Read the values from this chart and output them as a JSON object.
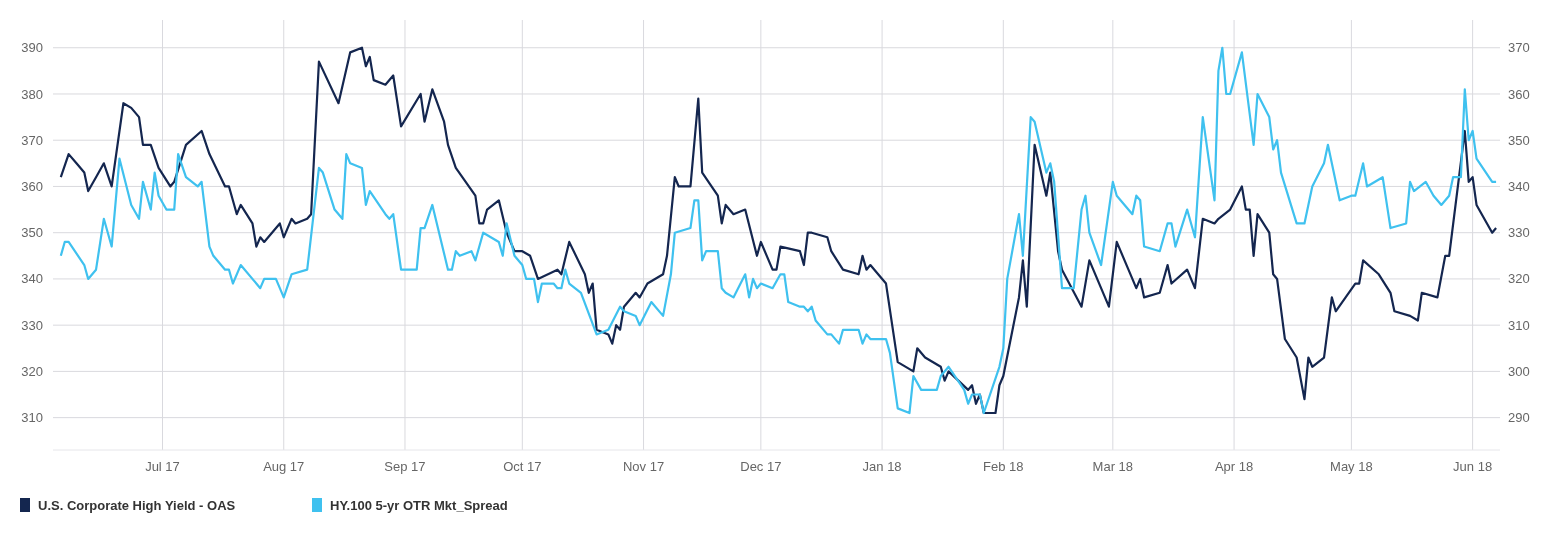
{
  "chart_data": {
    "type": "line",
    "xlim": [
      "2017-06-03",
      "2018-06-08"
    ],
    "xticks": [
      {
        "value": "2017-07-01",
        "label": "Jul 17"
      },
      {
        "value": "2017-08-01",
        "label": "Aug 17"
      },
      {
        "value": "2017-09-01",
        "label": "Sep 17"
      },
      {
        "value": "2017-10-01",
        "label": "Oct 17"
      },
      {
        "value": "2017-11-01",
        "label": "Nov 17"
      },
      {
        "value": "2017-12-01",
        "label": "Dec 17"
      },
      {
        "value": "2018-01-01",
        "label": "Jan 18"
      },
      {
        "value": "2018-02-01",
        "label": "Feb 18"
      },
      {
        "value": "2018-03-01",
        "label": "Mar 18"
      },
      {
        "value": "2018-04-01",
        "label": "Apr 18"
      },
      {
        "value": "2018-05-01",
        "label": "May 18"
      },
      {
        "value": "2018-06-01",
        "label": "Jun 18"
      }
    ],
    "ylim": [
      303,
      396
    ],
    "yticks": [
      310,
      320,
      330,
      340,
      350,
      360,
      370,
      380,
      390
    ],
    "y2lim": [
      283,
      376
    ],
    "y2ticks": [
      290,
      300,
      310,
      320,
      330,
      340,
      350,
      360,
      370
    ],
    "grid": true,
    "legend": "bottom left",
    "series": [
      {
        "name": "U.S. Corporate High Yield - OAS",
        "color": "#14264f",
        "axis": "y",
        "x": [
          "2017-06-05",
          "2017-06-07",
          "2017-06-09",
          "2017-06-11",
          "2017-06-12",
          "2017-06-14",
          "2017-06-16",
          "2017-06-18",
          "2017-06-21",
          "2017-06-23",
          "2017-06-25",
          "2017-06-26",
          "2017-06-28",
          "2017-06-30",
          "2017-07-03",
          "2017-07-04",
          "2017-07-07",
          "2017-07-11",
          "2017-07-13",
          "2017-07-17",
          "2017-07-18",
          "2017-07-20",
          "2017-07-21",
          "2017-07-24",
          "2017-07-25",
          "2017-07-26",
          "2017-07-27",
          "2017-07-31",
          "2017-08-01",
          "2017-08-03",
          "2017-08-04",
          "2017-08-07",
          "2017-08-08",
          "2017-08-10",
          "2017-08-15",
          "2017-08-18",
          "2017-08-21",
          "2017-08-22",
          "2017-08-23",
          "2017-08-24",
          "2017-08-27",
          "2017-08-29",
          "2017-08-31",
          "2017-09-05",
          "2017-09-06",
          "2017-09-08",
          "2017-09-11",
          "2017-09-12",
          "2017-09-14",
          "2017-09-19",
          "2017-09-20",
          "2017-09-21",
          "2017-09-22",
          "2017-09-25",
          "2017-09-27",
          "2017-09-29",
          "2017-10-01",
          "2017-10-03",
          "2017-10-05",
          "2017-10-10",
          "2017-10-11",
          "2017-10-13",
          "2017-10-17",
          "2017-10-18",
          "2017-10-19",
          "2017-10-20",
          "2017-10-23",
          "2017-10-24",
          "2017-10-25",
          "2017-10-26",
          "2017-10-27",
          "2017-10-30",
          "2017-10-31",
          "2017-11-02",
          "2017-11-06",
          "2017-11-07",
          "2017-11-09",
          "2017-11-10",
          "2017-11-13",
          "2017-11-15",
          "2017-11-16",
          "2017-11-20",
          "2017-11-21",
          "2017-11-22",
          "2017-11-24",
          "2017-11-27",
          "2017-11-30",
          "2017-12-01",
          "2017-12-04",
          "2017-12-05",
          "2017-12-06",
          "2017-12-11",
          "2017-12-12",
          "2017-12-13",
          "2017-12-14",
          "2017-12-18",
          "2017-12-19",
          "2017-12-22",
          "2017-12-26",
          "2017-12-27",
          "2017-12-28",
          "2017-12-29",
          "2018-01-02",
          "2018-01-05",
          "2018-01-09",
          "2018-01-10",
          "2018-01-12",
          "2018-01-16",
          "2018-01-17",
          "2018-01-18",
          "2018-01-23",
          "2018-01-24",
          "2018-01-25",
          "2018-01-26",
          "2018-01-27",
          "2018-01-30",
          "2018-01-31",
          "2018-02-01",
          "2018-02-05",
          "2018-02-06",
          "2018-02-07",
          "2018-02-09",
          "2018-02-12",
          "2018-02-13",
          "2018-02-15",
          "2018-02-16",
          "2018-02-21",
          "2018-02-23",
          "2018-02-26",
          "2018-02-28",
          "2018-03-02",
          "2018-03-05",
          "2018-03-07",
          "2018-03-08",
          "2018-03-09",
          "2018-03-13",
          "2018-03-15",
          "2018-03-16",
          "2018-03-20",
          "2018-03-22",
          "2018-03-24",
          "2018-03-27",
          "2018-03-28",
          "2018-03-31",
          "2018-04-03",
          "2018-04-04",
          "2018-04-05",
          "2018-04-06",
          "2018-04-07",
          "2018-04-10",
          "2018-04-11",
          "2018-04-12",
          "2018-04-14",
          "2018-04-17",
          "2018-04-19",
          "2018-04-20",
          "2018-04-21",
          "2018-04-24",
          "2018-04-26",
          "2018-04-27",
          "2018-05-02",
          "2018-05-03",
          "2018-05-04",
          "2018-05-08",
          "2018-05-11",
          "2018-05-12",
          "2018-05-16",
          "2018-05-18",
          "2018-05-19",
          "2018-05-23",
          "2018-05-25",
          "2018-05-26",
          "2018-05-30",
          "2018-05-31",
          "2018-06-01",
          "2018-06-02",
          "2018-06-06",
          "2018-06-07"
        ],
        "values": [
          362,
          367,
          365,
          363,
          359,
          362,
          365,
          360,
          378,
          377,
          375,
          369,
          369,
          364,
          360,
          361,
          369,
          372,
          367,
          360,
          360,
          354,
          356,
          352,
          347,
          349,
          348,
          352,
          349,
          353,
          352,
          353,
          354,
          387,
          378,
          389,
          390,
          386,
          388,
          383,
          382,
          384,
          373,
          380,
          374,
          381,
          374,
          369,
          364,
          358,
          352,
          352,
          355,
          357,
          350,
          346,
          346,
          345,
          340,
          342,
          341,
          348,
          341,
          337,
          339,
          329,
          328,
          326,
          330,
          329,
          334,
          337,
          336,
          339,
          341,
          345,
          362,
          360,
          360,
          379,
          363,
          358,
          352,
          356,
          354,
          355,
          345,
          348,
          342,
          342,
          347,
          346,
          343,
          350,
          350,
          349,
          346,
          342,
          341,
          345,
          342,
          343,
          339,
          322,
          320,
          325,
          323,
          321,
          318,
          320,
          316,
          317,
          313,
          315,
          311,
          311,
          317,
          319,
          336,
          344,
          334,
          369,
          358,
          363,
          346,
          342,
          334,
          344,
          338,
          334,
          348,
          342,
          338,
          340,
          336,
          337,
          343,
          339,
          342,
          338,
          353,
          352,
          353,
          355,
          360,
          355,
          355,
          345,
          354,
          350,
          341,
          340,
          327,
          323,
          314,
          323,
          321,
          323,
          336,
          333,
          339,
          339,
          344,
          341,
          337,
          333,
          332,
          331,
          337,
          336,
          345,
          345,
          372,
          361,
          362,
          356,
          350,
          351
        ]
      },
      {
        "name": "HY.100 5-yr OTR Mkt_Spread",
        "color": "#3fc1ef",
        "axis": "y2",
        "x": [
          "2017-06-05",
          "2017-06-06",
          "2017-06-07",
          "2017-06-11",
          "2017-06-12",
          "2017-06-14",
          "2017-06-16",
          "2017-06-18",
          "2017-06-20",
          "2017-06-23",
          "2017-06-25",
          "2017-06-26",
          "2017-06-28",
          "2017-06-29",
          "2017-06-30",
          "2017-07-02",
          "2017-07-04",
          "2017-07-05",
          "2017-07-07",
          "2017-07-10",
          "2017-07-11",
          "2017-07-13",
          "2017-07-14",
          "2017-07-17",
          "2017-07-18",
          "2017-07-19",
          "2017-07-21",
          "2017-07-26",
          "2017-07-27",
          "2017-07-30",
          "2017-08-01",
          "2017-08-03",
          "2017-08-07",
          "2017-08-10",
          "2017-08-11",
          "2017-08-14",
          "2017-08-16",
          "2017-08-17",
          "2017-08-18",
          "2017-08-21",
          "2017-08-22",
          "2017-08-23",
          "2017-08-27",
          "2017-08-28",
          "2017-08-29",
          "2017-08-31",
          "2017-09-04",
          "2017-09-05",
          "2017-09-06",
          "2017-09-08",
          "2017-09-12",
          "2017-09-13",
          "2017-09-14",
          "2017-09-15",
          "2017-09-18",
          "2017-09-19",
          "2017-09-21",
          "2017-09-25",
          "2017-09-26",
          "2017-09-27",
          "2017-09-29",
          "2017-10-01",
          "2017-10-02",
          "2017-10-03",
          "2017-10-04",
          "2017-10-05",
          "2017-10-06",
          "2017-10-09",
          "2017-10-10",
          "2017-10-11",
          "2017-10-12",
          "2017-10-13",
          "2017-10-16",
          "2017-10-20",
          "2017-10-23",
          "2017-10-26",
          "2017-10-27",
          "2017-10-30",
          "2017-10-31",
          "2017-11-03",
          "2017-11-06",
          "2017-11-08",
          "2017-11-09",
          "2017-11-13",
          "2017-11-14",
          "2017-11-15",
          "2017-11-16",
          "2017-11-17",
          "2017-11-20",
          "2017-11-21",
          "2017-11-22",
          "2017-11-24",
          "2017-11-27",
          "2017-11-28",
          "2017-11-29",
          "2017-11-30",
          "2017-12-01",
          "2017-12-04",
          "2017-12-06",
          "2017-12-07",
          "2017-12-08",
          "2017-12-11",
          "2017-12-12",
          "2017-12-13",
          "2017-12-14",
          "2017-12-15",
          "2017-12-18",
          "2017-12-19",
          "2017-12-21",
          "2017-12-22",
          "2017-12-26",
          "2017-12-27",
          "2017-12-28",
          "2017-12-29",
          "2018-01-02",
          "2018-01-03",
          "2018-01-05",
          "2018-01-08",
          "2018-01-09",
          "2018-01-11",
          "2018-01-15",
          "2018-01-16",
          "2018-01-18",
          "2018-01-22",
          "2018-01-23",
          "2018-01-24",
          "2018-01-26",
          "2018-01-27",
          "2018-01-31",
          "2018-02-01",
          "2018-02-02",
          "2018-02-05",
          "2018-02-06",
          "2018-02-08",
          "2018-02-09",
          "2018-02-12",
          "2018-02-13",
          "2018-02-14",
          "2018-02-16",
          "2018-02-19",
          "2018-02-21",
          "2018-02-22",
          "2018-02-23",
          "2018-02-26",
          "2018-03-01",
          "2018-03-02",
          "2018-03-06",
          "2018-03-07",
          "2018-03-08",
          "2018-03-09",
          "2018-03-13",
          "2018-03-15",
          "2018-03-16",
          "2018-03-17",
          "2018-03-20",
          "2018-03-22",
          "2018-03-24",
          "2018-03-27",
          "2018-03-28",
          "2018-03-29",
          "2018-03-30",
          "2018-03-31",
          "2018-04-03",
          "2018-04-06",
          "2018-04-07",
          "2018-04-10",
          "2018-04-11",
          "2018-04-12",
          "2018-04-13",
          "2018-04-17",
          "2018-04-19",
          "2018-04-21",
          "2018-04-24",
          "2018-04-25",
          "2018-04-28",
          "2018-05-01",
          "2018-05-02",
          "2018-05-04",
          "2018-05-05",
          "2018-05-09",
          "2018-05-11",
          "2018-05-15",
          "2018-05-16",
          "2018-05-17",
          "2018-05-20",
          "2018-05-22",
          "2018-05-24",
          "2018-05-26",
          "2018-05-27",
          "2018-05-29",
          "2018-05-30",
          "2018-05-31",
          "2018-06-01",
          "2018-06-02",
          "2018-06-06",
          "2018-06-07"
        ],
        "values": [
          325,
          328,
          328,
          323,
          320,
          322,
          333,
          327,
          346,
          336,
          333,
          341,
          335,
          343,
          338,
          335,
          335,
          347,
          342,
          340,
          341,
          327,
          325,
          322,
          322,
          319,
          323,
          318,
          320,
          320,
          316,
          321,
          322,
          344,
          343,
          335,
          333,
          347,
          345,
          344,
          336,
          339,
          334,
          333,
          334,
          322,
          322,
          331,
          331,
          336,
          322,
          322,
          326,
          325,
          326,
          324,
          330,
          328,
          325,
          332,
          325,
          323,
          320,
          320,
          320,
          315,
          319,
          319,
          318,
          318,
          322,
          319,
          317,
          308,
          309,
          314,
          313,
          312,
          310,
          315,
          312,
          321,
          330,
          331,
          337,
          337,
          324,
          326,
          326,
          318,
          317,
          316,
          321,
          316,
          320,
          318,
          319,
          318,
          321,
          321,
          315,
          314,
          314,
          313,
          314,
          311,
          308,
          308,
          306,
          309,
          309,
          306,
          308,
          307,
          307,
          304,
          292,
          291,
          299,
          296,
          296,
          299,
          301,
          296,
          293,
          295,
          295,
          291,
          301,
          305,
          320,
          334,
          325,
          355,
          354,
          343,
          345,
          341,
          318,
          318,
          335,
          338,
          330,
          323,
          341,
          338,
          334,
          338,
          337,
          327,
          326,
          332,
          332,
          327,
          335,
          329,
          355,
          337,
          365,
          370,
          360,
          360,
          369,
          349,
          360,
          355,
          348,
          350,
          343,
          332,
          332,
          340,
          345,
          349,
          337,
          338,
          338,
          345,
          340,
          342,
          331,
          332,
          341,
          339,
          341,
          338,
          336,
          338,
          342,
          342,
          361,
          350,
          352,
          346,
          341,
          341
        ]
      }
    ]
  }
}
